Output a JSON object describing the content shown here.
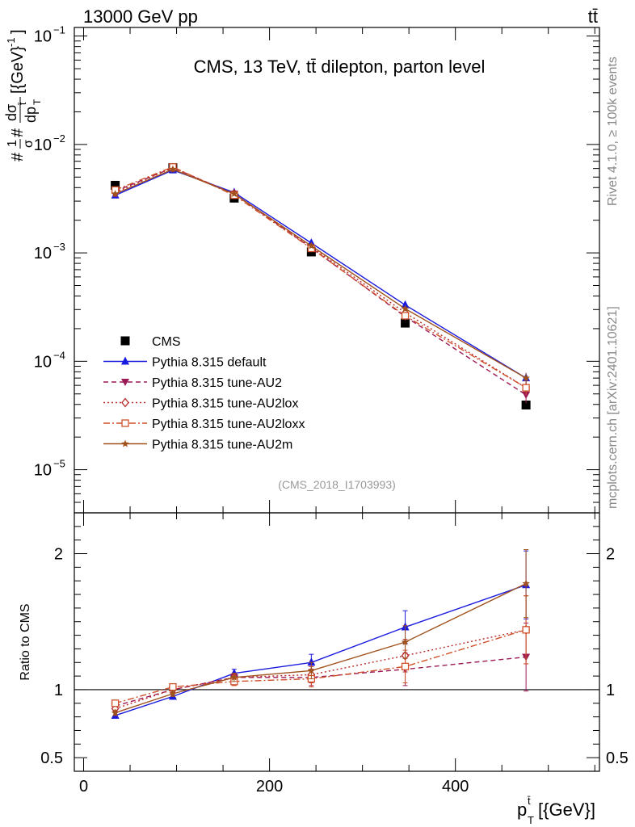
{
  "header": {
    "left": "13000 GeV pp",
    "right": "tt̄"
  },
  "side_labels": {
    "rivet": "Rivet 4.1.0, ≥ 100k events",
    "mcplots": "mcplots.cern.ch [arXiv:2401.10621]"
  },
  "chart_data": {
    "type": "line",
    "title": "CMS, 13 TeV, tt̄ dilepton, parton level",
    "analysis_id": "(CMS_2018_I1703993)",
    "x": [
      34,
      96,
      162,
      245,
      346,
      476
    ],
    "x_edges": [
      0,
      68,
      124,
      200,
      290,
      402,
      550
    ],
    "xlim": [
      -10,
      555
    ],
    "ylim": [
      4e-06,
      0.12
    ],
    "yscale": "log",
    "ylabel": "#frac{1}{σ}#frac{dσ}{dp_T^t̄}[{GeV}^{-1}]",
    "ylabel_display": {
      "numerator": "dσ",
      "denominator": "dp",
      "sub": "T",
      "sup": "t̄",
      "prefix": "#",
      "one": "1",
      "sigma": "σ",
      "units": "[{GeV}",
      "exp": "-1",
      "close": "]"
    },
    "xlabel": "p_T^t̄ [{GeV}]",
    "xlabel_display": {
      "base": "p",
      "sub": "T",
      "sup": "t̄",
      "units": "[{GeV}]"
    },
    "y_ticks": [
      {
        "v": 0.1,
        "base": "10",
        "exp": "−1"
      },
      {
        "v": 0.01,
        "base": "10",
        "exp": "−2"
      },
      {
        "v": 0.001,
        "base": "10",
        "exp": "−3"
      },
      {
        "v": 0.0001,
        "base": "10",
        "exp": "−4"
      },
      {
        "v": 1e-05,
        "base": "10",
        "exp": "−5"
      }
    ],
    "x_ticks": [
      {
        "v": 0,
        "label": "0"
      },
      {
        "v": 200,
        "label": "200"
      },
      {
        "v": 400,
        "label": "400"
      }
    ],
    "legend_position": "middle-left",
    "series": [
      {
        "name": "CMS",
        "role": "data",
        "marker": "square",
        "color": "#000000",
        "values": [
          0.0042,
          0.0061,
          0.0032,
          0.00102,
          0.000225,
          3.95e-05
        ]
      },
      {
        "name": "Pythia 8.315 default",
        "marker": "triangle-up",
        "line": "solid",
        "color": "#1a1adf",
        "values": [
          0.0034,
          0.0058,
          0.0036,
          0.00123,
          0.00033,
          7e-05
        ],
        "err": [
          0.0001,
          0.0002,
          0.0001,
          4e-05,
          1.5e-05,
          8e-06
        ]
      },
      {
        "name": "Pythia 8.315 tune-AU2",
        "marker": "triangle-down",
        "line": "dashed",
        "color": "#9b1a55",
        "values": [
          0.0037,
          0.0061,
          0.0035,
          0.00111,
          0.000258,
          4.9e-05
        ],
        "err": [
          0.0001,
          0.0002,
          0.0001,
          4e-05,
          1.5e-05,
          8e-06
        ]
      },
      {
        "name": "Pythia 8.315 tune-AU2lox",
        "marker": "diamond-open",
        "line": "dotted",
        "color": "#b82a2a",
        "values": [
          0.0036,
          0.0061,
          0.0035,
          0.00113,
          0.00028,
          5.7e-05
        ],
        "err": [
          0.0001,
          0.0002,
          0.0001,
          4e-05,
          1.5e-05,
          8e-06
        ]
      },
      {
        "name": "Pythia 8.315 tune-AU2loxx",
        "marker": "square-open",
        "line": "dashdot",
        "color": "#d0502a",
        "values": [
          0.0038,
          0.0062,
          0.0034,
          0.0011,
          0.000263,
          5.7e-05
        ],
        "err": [
          0.0001,
          0.0002,
          0.0001,
          4e-05,
          1.5e-05,
          8e-06
        ]
      },
      {
        "name": "Pythia 8.315 tune-AU2m",
        "marker": "star",
        "line": "solid",
        "color": "#a0521e",
        "values": [
          0.0035,
          0.0059,
          0.0035,
          0.00116,
          0.000305,
          7e-05
        ],
        "err": [
          0.0001,
          0.0002,
          0.0001,
          4e-05,
          1.5e-05,
          8e-06
        ]
      }
    ],
    "ratio": {
      "ylabel": "Ratio to CMS",
      "ylim": [
        0.4,
        2.3
      ],
      "y_ticks": [
        {
          "v": 0.5,
          "label": "0.5"
        },
        {
          "v": 1,
          "label": "1"
        },
        {
          "v": 2,
          "label": "2"
        }
      ],
      "series": [
        {
          "values": [
            0.81,
            0.95,
            1.12,
            1.2,
            1.46,
            1.77
          ],
          "err": [
            0.02,
            0.02,
            0.03,
            0.06,
            0.12,
            0.25
          ]
        },
        {
          "values": [
            0.88,
            1.0,
            1.09,
            1.09,
            1.15,
            1.24
          ],
          "err": [
            0.02,
            0.02,
            0.03,
            0.06,
            0.12,
            0.25
          ]
        },
        {
          "values": [
            0.86,
            1.0,
            1.09,
            1.11,
            1.25,
            1.44
          ],
          "err": [
            0.02,
            0.02,
            0.03,
            0.06,
            0.12,
            0.25
          ]
        },
        {
          "values": [
            0.9,
            1.02,
            1.06,
            1.08,
            1.17,
            1.44
          ],
          "err": [
            0.02,
            0.02,
            0.03,
            0.06,
            0.12,
            0.25
          ]
        },
        {
          "values": [
            0.83,
            0.97,
            1.09,
            1.14,
            1.35,
            1.78
          ],
          "err": [
            0.02,
            0.02,
            0.03,
            0.06,
            0.12,
            0.25
          ]
        }
      ]
    }
  }
}
